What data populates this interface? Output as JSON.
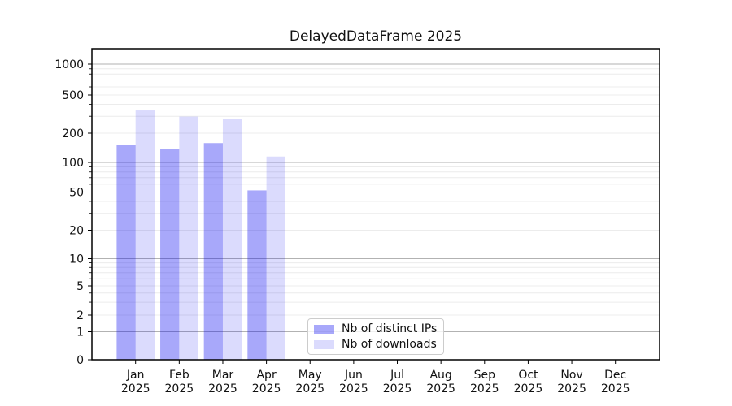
{
  "chart_data": {
    "type": "bar",
    "title": "DelayedDataFrame 2025",
    "yscale": "symlog",
    "xlabel": "",
    "ylabel": "",
    "categories": [
      "Jan",
      "Feb",
      "Mar",
      "Apr",
      "May",
      "Jun",
      "Jul",
      "Aug",
      "Sep",
      "Oct",
      "Nov",
      "Dec"
    ],
    "x_tick_year": "2025",
    "y_ticks": [
      0,
      1,
      2,
      5,
      10,
      20,
      50,
      100,
      200,
      500,
      1000
    ],
    "ylim": [
      0,
      1400
    ],
    "grid": "horizontal major and minor gridlines",
    "legend_position": "lower center",
    "series": [
      {
        "name": "Nb of distinct IPs",
        "color": "rgba(0,0,240,0.34)",
        "color_hex_on_white": "#a8a8fa",
        "values": [
          150,
          138,
          158,
          52,
          0,
          0,
          0,
          0,
          0,
          0,
          0,
          0
        ]
      },
      {
        "name": "Nb of downloads",
        "color": "rgba(0,0,240,0.14)",
        "color_hex_on_white": "#dcdcfc",
        "values": [
          345,
          298,
          280,
          115,
          0,
          0,
          0,
          0,
          0,
          0,
          0,
          0
        ]
      }
    ]
  }
}
